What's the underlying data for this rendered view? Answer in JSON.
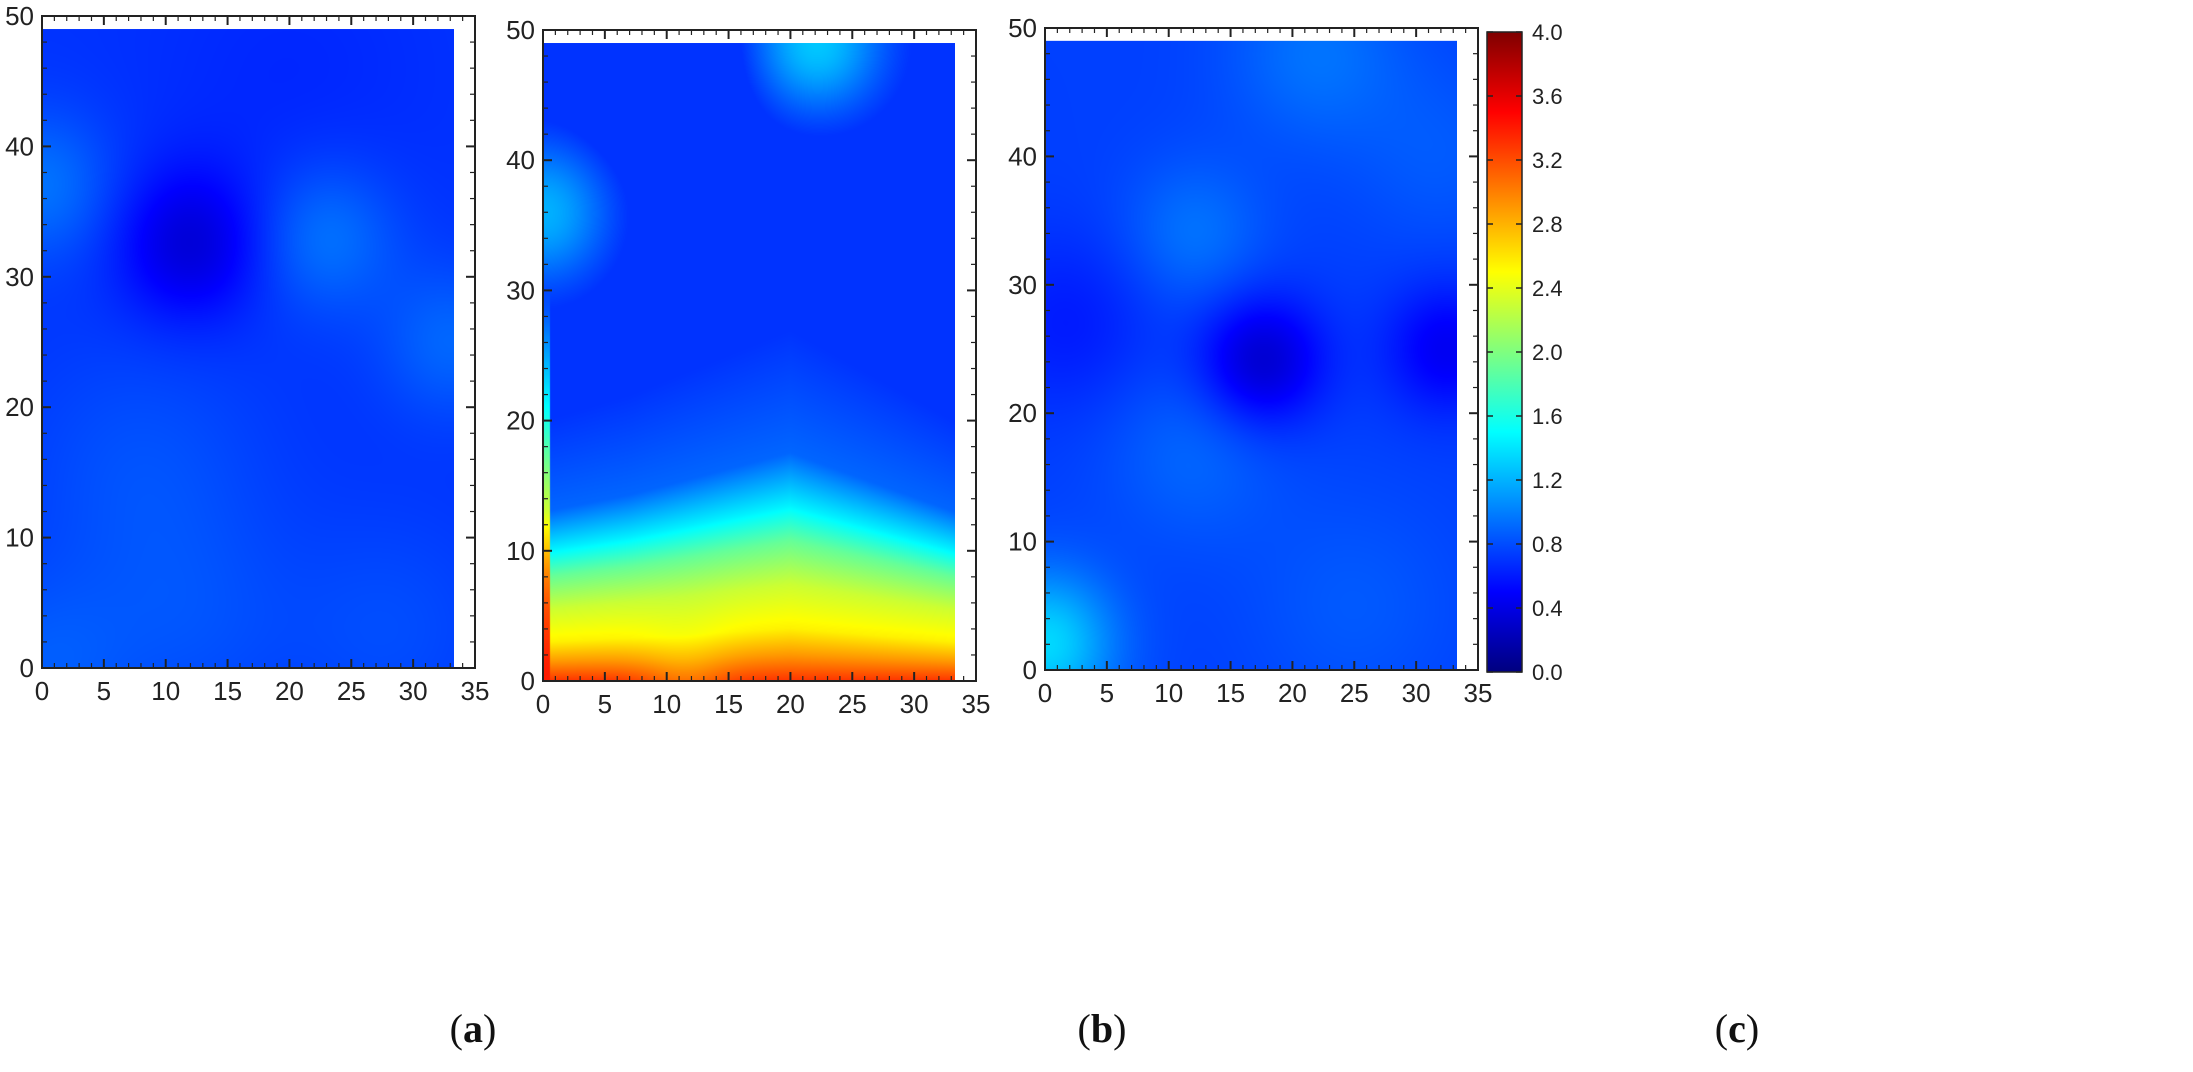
{
  "colors": {
    "colormap": [
      "#00007f",
      "#0000ff",
      "#007fff",
      "#00ffff",
      "#7fff7f",
      "#ffff00",
      "#ff7f00",
      "#ff0000",
      "#7f0000"
    ],
    "frame": "#222222",
    "background": "#ffffff"
  },
  "chart_data": [
    {
      "type": "heatmap",
      "panel_label": "a",
      "x_ticks": [
        "0",
        "5",
        "10",
        "15",
        "20",
        "25",
        "30",
        "35"
      ],
      "y_ticks": [
        "0",
        "10",
        "20",
        "30",
        "40",
        "50"
      ],
      "xlim": [
        0,
        35
      ],
      "ylim": [
        0,
        50
      ],
      "data_extent": {
        "x": [
          0,
          33.3
        ],
        "y": [
          0,
          49
        ]
      },
      "base_value": 0.7,
      "field": [
        {
          "x": 12,
          "y": 32.5,
          "amp": -0.35,
          "sigma": 4
        },
        {
          "x": 23,
          "y": 33,
          "amp": 0.25,
          "sigma": 4
        },
        {
          "x": 0,
          "y": 37,
          "amp": 0.25,
          "sigma": 4
        },
        {
          "x": 33,
          "y": 25,
          "amp": 0.2,
          "sigma": 4
        },
        {
          "x": 8,
          "y": 15,
          "amp": 0.12,
          "sigma": 7
        },
        {
          "x": 0,
          "y": 0,
          "amp": 0.15,
          "sigma": 5
        },
        {
          "x": 28,
          "y": 3,
          "amp": 0.1,
          "sigma": 6
        },
        {
          "x": 12,
          "y": 3,
          "amp": 0.1,
          "sigma": 6
        },
        {
          "x": 20,
          "y": 45,
          "amp": -0.05,
          "sigma": 8
        }
      ]
    },
    {
      "type": "heatmap",
      "panel_label": "b",
      "x_ticks": [
        "0",
        "5",
        "10",
        "15",
        "20",
        "25",
        "30",
        "35"
      ],
      "y_ticks": [
        "0",
        "10",
        "20",
        "30",
        "40",
        "50"
      ],
      "xlim": [
        0,
        35
      ],
      "ylim": [
        0,
        50
      ],
      "data_extent": {
        "x": [
          0,
          33.3
        ],
        "y": [
          0,
          49
        ]
      },
      "base_value": 0.6,
      "bottom_gradient": {
        "top_edge": [
          [
            0,
            10
          ],
          [
            7,
            11
          ],
          [
            20,
            13.5
          ],
          [
            33.3,
            10
          ]
        ],
        "profile": [
          [
            0,
            3.3
          ],
          [
            1.5,
            2.9
          ],
          [
            3,
            2.55
          ],
          [
            5.5,
            2.3
          ],
          [
            8,
            1.9
          ],
          [
            10,
            1.45
          ],
          [
            13,
            0.9
          ],
          [
            20,
            0.7
          ]
        ],
        "hump_center_x": 11.5,
        "hump_amp": -0.25,
        "hump_sigma": 2.5
      },
      "left_edge": {
        "width": 0.6,
        "value": 3.4,
        "fade_top": 30
      },
      "field": [
        {
          "x": 22,
          "y": 49,
          "amp": 0.7,
          "sigma": 4
        },
        {
          "x": 0,
          "y": 36,
          "amp": 0.6,
          "sigma": 4
        },
        {
          "x": 10,
          "y": 48,
          "amp": -0.25,
          "sigma": 5
        },
        {
          "x": 20,
          "y": 30,
          "amp": -0.1,
          "sigma": 8
        }
      ]
    },
    {
      "type": "heatmap",
      "panel_label": "c",
      "x_ticks": [
        "0",
        "5",
        "10",
        "15",
        "20",
        "25",
        "30",
        "35"
      ],
      "y_ticks": [
        "0",
        "10",
        "20",
        "30",
        "40",
        "50"
      ],
      "xlim": [
        0,
        35
      ],
      "ylim": [
        0,
        50
      ],
      "data_extent": {
        "x": [
          0,
          33.3
        ],
        "y": [
          0,
          49
        ]
      },
      "base_value": 0.75,
      "field": [
        {
          "x": 17.5,
          "y": 24,
          "amp": -0.45,
          "sigma": 3.5
        },
        {
          "x": 32.5,
          "y": 25,
          "amp": -0.3,
          "sigma": 3.5
        },
        {
          "x": 2,
          "y": 27,
          "amp": -0.15,
          "sigma": 5
        },
        {
          "x": 0,
          "y": 2,
          "amp": 0.6,
          "sigma": 4
        },
        {
          "x": 12,
          "y": 34,
          "amp": 0.2,
          "sigma": 4
        },
        {
          "x": 22,
          "y": 48,
          "amp": 0.2,
          "sigma": 5
        },
        {
          "x": 12,
          "y": 17,
          "amp": 0.15,
          "sigma": 5
        },
        {
          "x": 32,
          "y": 40,
          "amp": 0.1,
          "sigma": 5
        },
        {
          "x": 25,
          "y": 5,
          "amp": 0.1,
          "sigma": 6
        }
      ]
    }
  ],
  "colorbar": {
    "min": 0.0,
    "max": 4.0,
    "ticks": [
      "0.0",
      "0.4",
      "0.8",
      "1.2",
      "1.6",
      "2.0",
      "2.4",
      "2.8",
      "3.2",
      "3.6",
      "4.0"
    ]
  }
}
